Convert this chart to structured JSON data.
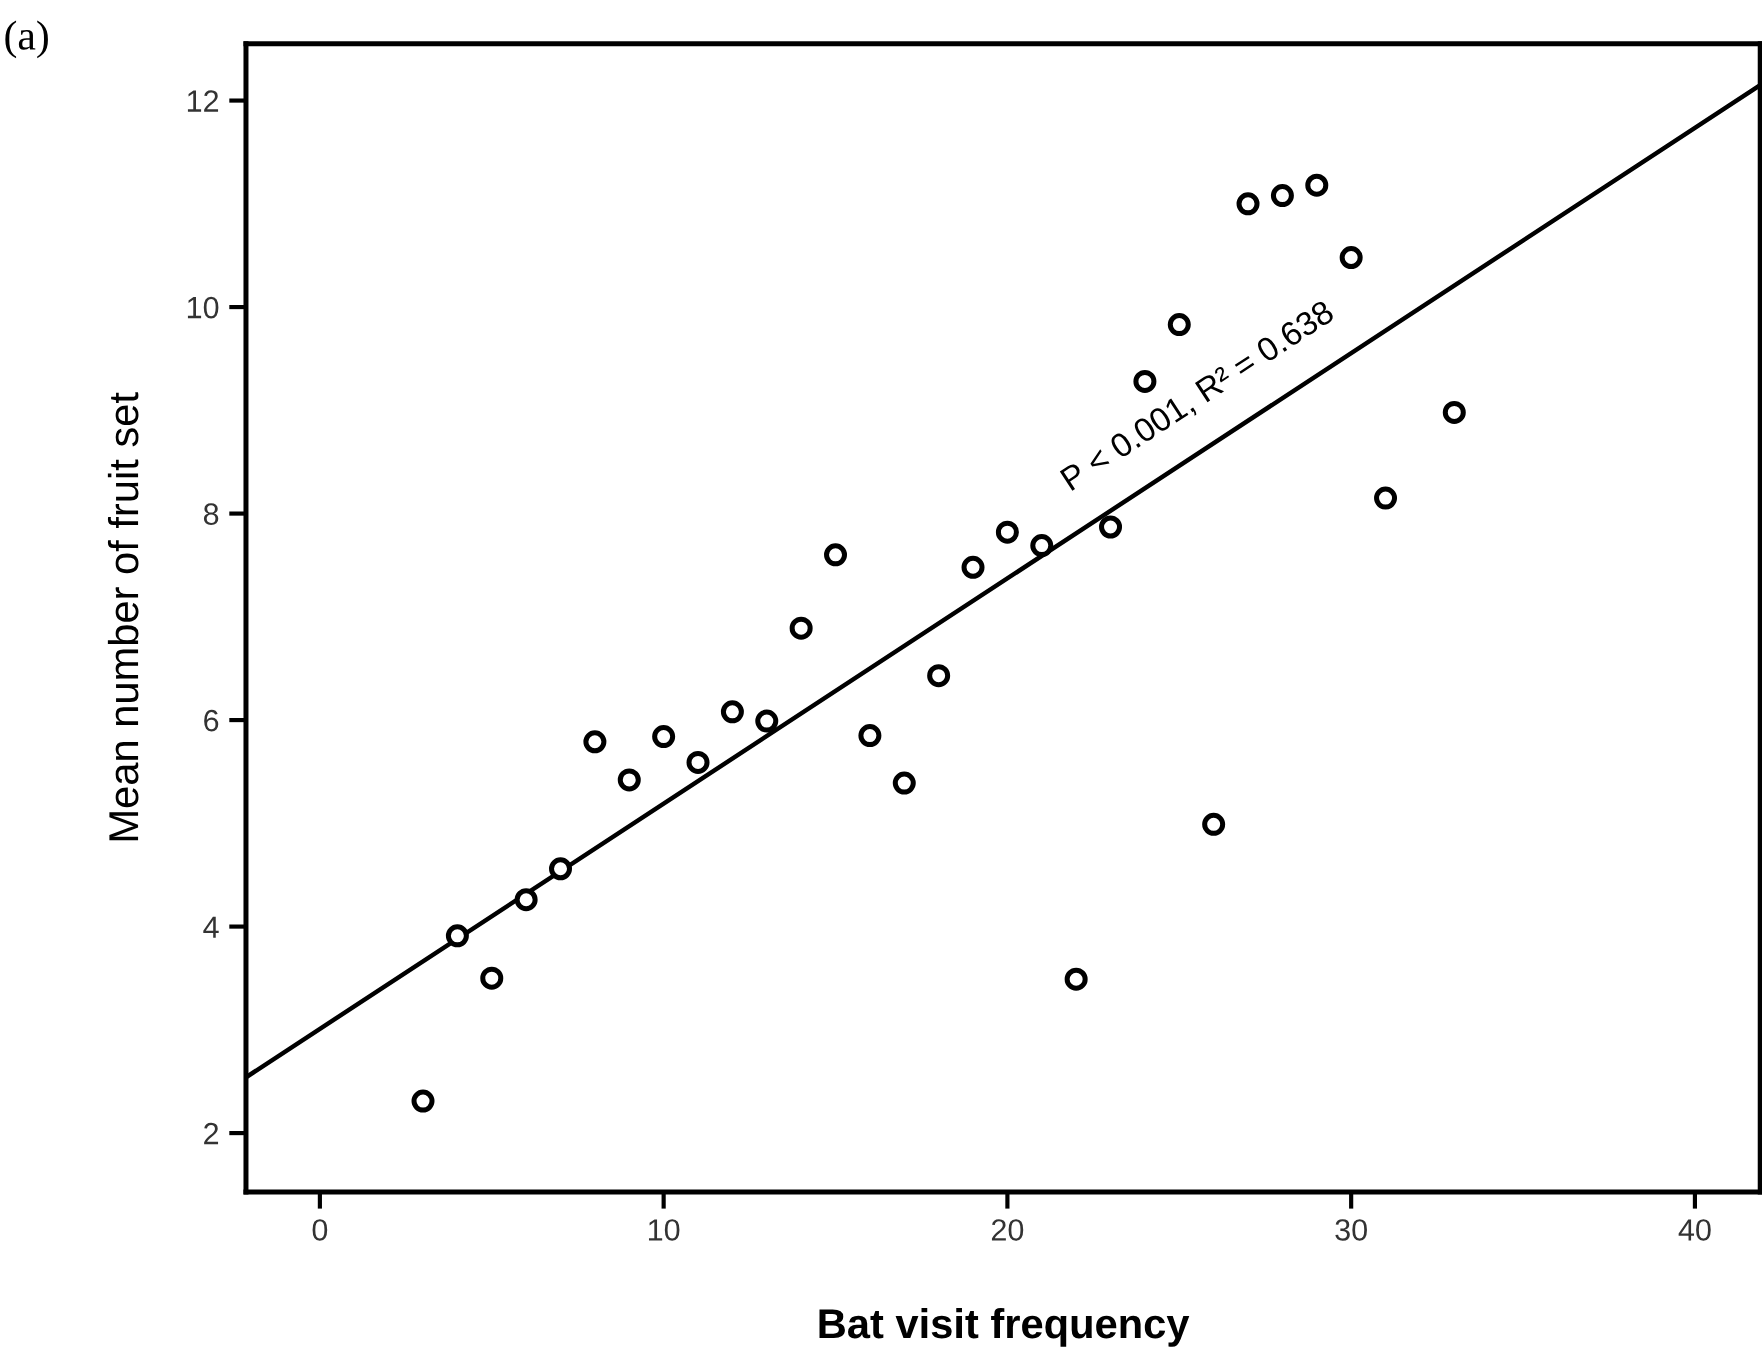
{
  "chart_data": {
    "type": "scatter",
    "title": "(a)",
    "xlabel": "Bat visit frequency",
    "ylabel": "Mean number of fruit set",
    "xlim": [
      -2.15,
      41.9
    ],
    "ylim": [
      1.43,
      12.55
    ],
    "xticks": [
      0,
      10,
      20,
      30,
      40
    ],
    "yticks": [
      2,
      4,
      6,
      8,
      10,
      12
    ],
    "grid": false,
    "series": [
      {
        "marker": "circle",
        "color": "#000000",
        "x": [
          3,
          4,
          5,
          6,
          7,
          8,
          9,
          10,
          11,
          12,
          13,
          14,
          15,
          16,
          17,
          18,
          19,
          20,
          21,
          22,
          23,
          24,
          25,
          26,
          27,
          28,
          29,
          30,
          31,
          33
        ],
        "values": [
          2.31,
          3.91,
          3.5,
          4.26,
          4.56,
          5.79,
          5.42,
          5.84,
          5.59,
          6.08,
          5.99,
          6.89,
          7.6,
          5.85,
          5.39,
          6.43,
          7.48,
          7.82,
          7.69,
          3.49,
          7.87,
          9.28,
          9.83,
          4.99,
          11.0,
          11.08,
          11.18,
          10.48,
          8.15,
          8.98
        ]
      },
      {
        "type": "line",
        "marker": "none",
        "color": "#000000",
        "line_style": "solid",
        "x": [
          -2.15,
          41.9
        ],
        "values": [
          2.54,
          12.15
        ]
      }
    ],
    "annotations": [
      "P < 0.001, R² = 0.638"
    ]
  }
}
